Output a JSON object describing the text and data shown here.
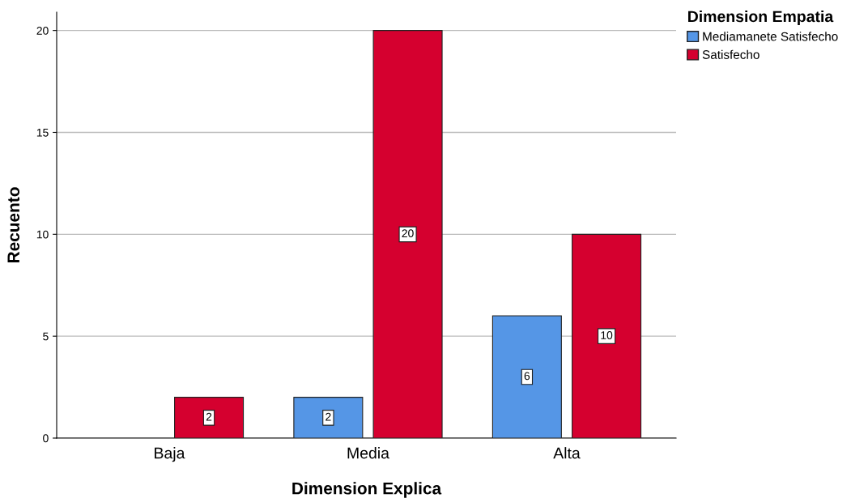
{
  "chart_data": {
    "type": "bar",
    "xlabel": "Dimension Explica",
    "ylabel": "Recuento",
    "legend_title": "Dimension Empatia",
    "categories": [
      "Baja",
      "Media",
      "Alta"
    ],
    "series": [
      {
        "name": "Mediamanete Satisfecho",
        "color": "#5596e6",
        "values": [
          null,
          2,
          6
        ],
        "value_labels": [
          null,
          "2",
          "6"
        ]
      },
      {
        "name": "Satisfecho",
        "color": "#d5002f",
        "values": [
          2,
          20,
          10
        ],
        "value_labels": [
          "2",
          "20",
          "10"
        ]
      }
    ],
    "ylim": [
      0,
      20.9
    ],
    "yticks": [
      0,
      5,
      10,
      15,
      20
    ],
    "grid": "y",
    "legend": "top right"
  }
}
